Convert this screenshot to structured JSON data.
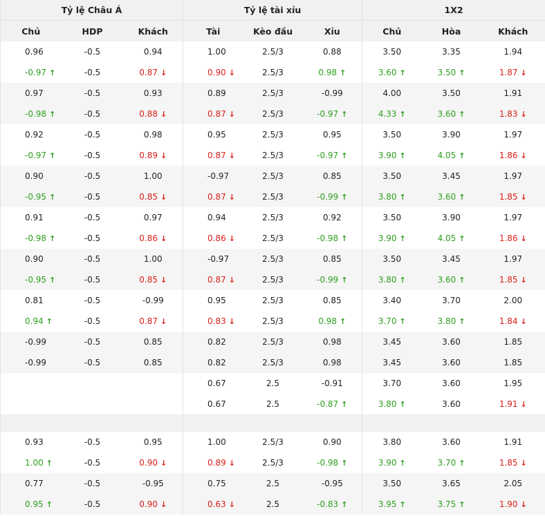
{
  "headers": {
    "asia": "Tỷ lệ Châu Á",
    "ou": "Tỷ lệ tài xỉu",
    "x12": "1X2",
    "cols": [
      "Chủ",
      "HDP",
      "Khách",
      "Tài",
      "Kèo đầu",
      "Xỉu",
      "Chủ",
      "Hòa",
      "Khách"
    ]
  },
  "groups": [
    {
      "rows": [
        [
          [
            "0.96",
            ""
          ],
          [
            "-0.5",
            ""
          ],
          [
            "0.94",
            ""
          ],
          [
            "1.00",
            ""
          ],
          [
            "2.5/3",
            ""
          ],
          [
            "0.88",
            ""
          ],
          [
            "3.50",
            ""
          ],
          [
            "3.35",
            ""
          ],
          [
            "1.94",
            ""
          ]
        ],
        [
          [
            "-0.97",
            "up"
          ],
          [
            "-0.5",
            ""
          ],
          [
            "0.87",
            "down"
          ],
          [
            "0.90",
            "down"
          ],
          [
            "2.5/3",
            ""
          ],
          [
            "0.98",
            "up"
          ],
          [
            "3.60",
            "up"
          ],
          [
            "3.50",
            "up"
          ],
          [
            "1.87",
            "down"
          ]
        ]
      ]
    },
    {
      "rows": [
        [
          [
            "0.97",
            ""
          ],
          [
            "-0.5",
            ""
          ],
          [
            "0.93",
            ""
          ],
          [
            "0.89",
            ""
          ],
          [
            "2.5/3",
            ""
          ],
          [
            "-0.99",
            ""
          ],
          [
            "4.00",
            ""
          ],
          [
            "3.50",
            ""
          ],
          [
            "1.91",
            ""
          ]
        ],
        [
          [
            "-0.98",
            "up"
          ],
          [
            "-0.5",
            ""
          ],
          [
            "0.88",
            "down"
          ],
          [
            "0.87",
            "down"
          ],
          [
            "2.5/3",
            ""
          ],
          [
            "-0.97",
            "up"
          ],
          [
            "4.33",
            "up"
          ],
          [
            "3.60",
            "up"
          ],
          [
            "1.83",
            "down"
          ]
        ]
      ]
    },
    {
      "rows": [
        [
          [
            "0.92",
            ""
          ],
          [
            "-0.5",
            ""
          ],
          [
            "0.98",
            ""
          ],
          [
            "0.95",
            ""
          ],
          [
            "2.5/3",
            ""
          ],
          [
            "0.95",
            ""
          ],
          [
            "3.50",
            ""
          ],
          [
            "3.90",
            ""
          ],
          [
            "1.97",
            ""
          ]
        ],
        [
          [
            "-0.97",
            "up"
          ],
          [
            "-0.5",
            ""
          ],
          [
            "0.89",
            "down"
          ],
          [
            "0.87",
            "down"
          ],
          [
            "2.5/3",
            ""
          ],
          [
            "-0.97",
            "up"
          ],
          [
            "3.90",
            "up"
          ],
          [
            "4.05",
            "up"
          ],
          [
            "1.86",
            "down"
          ]
        ]
      ]
    },
    {
      "rows": [
        [
          [
            "0.90",
            ""
          ],
          [
            "-0.5",
            ""
          ],
          [
            "1.00",
            ""
          ],
          [
            "-0.97",
            ""
          ],
          [
            "2.5/3",
            ""
          ],
          [
            "0.85",
            ""
          ],
          [
            "3.50",
            ""
          ],
          [
            "3.45",
            ""
          ],
          [
            "1.97",
            ""
          ]
        ],
        [
          [
            "-0.95",
            "up"
          ],
          [
            "-0.5",
            ""
          ],
          [
            "0.85",
            "down"
          ],
          [
            "0.87",
            "down"
          ],
          [
            "2.5/3",
            ""
          ],
          [
            "-0.99",
            "up"
          ],
          [
            "3.80",
            "up"
          ],
          [
            "3.60",
            "up"
          ],
          [
            "1.85",
            "down"
          ]
        ]
      ]
    },
    {
      "rows": [
        [
          [
            "0.91",
            ""
          ],
          [
            "-0.5",
            ""
          ],
          [
            "0.97",
            ""
          ],
          [
            "0.94",
            ""
          ],
          [
            "2.5/3",
            ""
          ],
          [
            "0.92",
            ""
          ],
          [
            "3.50",
            ""
          ],
          [
            "3.90",
            ""
          ],
          [
            "1.97",
            ""
          ]
        ],
        [
          [
            "-0.98",
            "up"
          ],
          [
            "-0.5",
            ""
          ],
          [
            "0.86",
            "down"
          ],
          [
            "0.86",
            "down"
          ],
          [
            "2.5/3",
            ""
          ],
          [
            "-0.98",
            "up"
          ],
          [
            "3.90",
            "up"
          ],
          [
            "4.05",
            "up"
          ],
          [
            "1.86",
            "down"
          ]
        ]
      ]
    },
    {
      "rows": [
        [
          [
            "0.90",
            ""
          ],
          [
            "-0.5",
            ""
          ],
          [
            "1.00",
            ""
          ],
          [
            "-0.97",
            ""
          ],
          [
            "2.5/3",
            ""
          ],
          [
            "0.85",
            ""
          ],
          [
            "3.50",
            ""
          ],
          [
            "3.45",
            ""
          ],
          [
            "1.97",
            ""
          ]
        ],
        [
          [
            "-0.95",
            "up"
          ],
          [
            "-0.5",
            ""
          ],
          [
            "0.85",
            "down"
          ],
          [
            "0.87",
            "down"
          ],
          [
            "2.5/3",
            ""
          ],
          [
            "-0.99",
            "up"
          ],
          [
            "3.80",
            "up"
          ],
          [
            "3.60",
            "up"
          ],
          [
            "1.85",
            "down"
          ]
        ]
      ]
    },
    {
      "rows": [
        [
          [
            "0.81",
            ""
          ],
          [
            "-0.5",
            ""
          ],
          [
            "-0.99",
            ""
          ],
          [
            "0.95",
            ""
          ],
          [
            "2.5/3",
            ""
          ],
          [
            "0.85",
            ""
          ],
          [
            "3.40",
            ""
          ],
          [
            "3.70",
            ""
          ],
          [
            "2.00",
            ""
          ]
        ],
        [
          [
            "0.94",
            "up"
          ],
          [
            "-0.5",
            ""
          ],
          [
            "0.87",
            "down"
          ],
          [
            "0.83",
            "down"
          ],
          [
            "2.5/3",
            ""
          ],
          [
            "0.98",
            "up"
          ],
          [
            "3.70",
            "up"
          ],
          [
            "3.80",
            "up"
          ],
          [
            "1.84",
            "down"
          ]
        ]
      ]
    },
    {
      "rows": [
        [
          [
            "-0.99",
            ""
          ],
          [
            "-0.5",
            ""
          ],
          [
            "0.85",
            ""
          ],
          [
            "0.82",
            ""
          ],
          [
            "2.5/3",
            ""
          ],
          [
            "0.98",
            ""
          ],
          [
            "3.45",
            ""
          ],
          [
            "3.60",
            ""
          ],
          [
            "1.85",
            ""
          ]
        ],
        [
          [
            "-0.99",
            ""
          ],
          [
            "-0.5",
            ""
          ],
          [
            "0.85",
            ""
          ],
          [
            "0.82",
            ""
          ],
          [
            "2.5/3",
            ""
          ],
          [
            "0.98",
            ""
          ],
          [
            "3.45",
            ""
          ],
          [
            "3.60",
            ""
          ],
          [
            "1.85",
            ""
          ]
        ]
      ]
    },
    {
      "rows": [
        [
          [
            "",
            ""
          ],
          [
            "",
            ""
          ],
          [
            "",
            ""
          ],
          [
            "0.67",
            ""
          ],
          [
            "2.5",
            ""
          ],
          [
            "-0.91",
            ""
          ],
          [
            "3.70",
            ""
          ],
          [
            "3.60",
            ""
          ],
          [
            "1.95",
            ""
          ]
        ],
        [
          [
            "",
            ""
          ],
          [
            "",
            ""
          ],
          [
            "",
            ""
          ],
          [
            "0.67",
            ""
          ],
          [
            "2.5",
            ""
          ],
          [
            "-0.87",
            "up"
          ],
          [
            "3.80",
            "up"
          ],
          [
            "3.60",
            ""
          ],
          [
            "1.91",
            "down"
          ]
        ]
      ]
    },
    {
      "blank": true,
      "rows": []
    },
    {
      "rows": [
        [
          [
            "0.93",
            ""
          ],
          [
            "-0.5",
            ""
          ],
          [
            "0.95",
            ""
          ],
          [
            "1.00",
            ""
          ],
          [
            "2.5/3",
            ""
          ],
          [
            "0.90",
            ""
          ],
          [
            "3.80",
            ""
          ],
          [
            "3.60",
            ""
          ],
          [
            "1.91",
            ""
          ]
        ],
        [
          [
            "1.00",
            "up"
          ],
          [
            "-0.5",
            ""
          ],
          [
            "0.90",
            "down"
          ],
          [
            "0.89",
            "down"
          ],
          [
            "2.5/3",
            ""
          ],
          [
            "-0.98",
            "up"
          ],
          [
            "3.90",
            "up"
          ],
          [
            "3.70",
            "up"
          ],
          [
            "1.85",
            "down"
          ]
        ]
      ]
    },
    {
      "rows": [
        [
          [
            "0.77",
            ""
          ],
          [
            "-0.5",
            ""
          ],
          [
            "-0.95",
            ""
          ],
          [
            "0.75",
            ""
          ],
          [
            "2.5",
            ""
          ],
          [
            "-0.95",
            ""
          ],
          [
            "3.50",
            ""
          ],
          [
            "3.65",
            ""
          ],
          [
            "2.05",
            ""
          ]
        ],
        [
          [
            "0.95",
            "up"
          ],
          [
            "-0.5",
            ""
          ],
          [
            "0.90",
            "down"
          ],
          [
            "0.63",
            "down"
          ],
          [
            "2.5",
            ""
          ],
          [
            "-0.83",
            "up"
          ],
          [
            "3.95",
            "up"
          ],
          [
            "3.75",
            "up"
          ],
          [
            "1.90",
            "down"
          ]
        ]
      ]
    }
  ],
  "icons": {
    "up": "arrow-up-icon",
    "down": "arrow-down-icon"
  },
  "colors": {
    "up": "#2e9e1f",
    "down": "#d91e18",
    "row_alt": "#f5f5f5",
    "header_bg": "#f1f1f1"
  }
}
